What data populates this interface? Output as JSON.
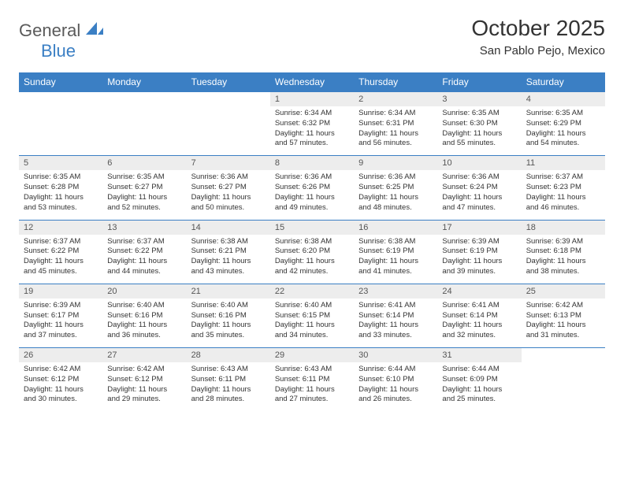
{
  "logo": {
    "text_general": "General",
    "text_blue": "Blue"
  },
  "header": {
    "title": "October 2025",
    "subtitle": "San Pablo Pejo, Mexico"
  },
  "colors": {
    "header_bg": "#3b7fc4",
    "header_text": "#ffffff",
    "daynum_bg": "#ededed",
    "border": "#3b7fc4",
    "page_bg": "#ffffff",
    "title_color": "#333333"
  },
  "calendar": {
    "day_headers": [
      "Sunday",
      "Monday",
      "Tuesday",
      "Wednesday",
      "Thursday",
      "Friday",
      "Saturday"
    ],
    "first_weekday_index": 3,
    "days": [
      {
        "n": 1,
        "sunrise": "6:34 AM",
        "sunset": "6:32 PM",
        "dl_h": 11,
        "dl_m": 57
      },
      {
        "n": 2,
        "sunrise": "6:34 AM",
        "sunset": "6:31 PM",
        "dl_h": 11,
        "dl_m": 56
      },
      {
        "n": 3,
        "sunrise": "6:35 AM",
        "sunset": "6:30 PM",
        "dl_h": 11,
        "dl_m": 55
      },
      {
        "n": 4,
        "sunrise": "6:35 AM",
        "sunset": "6:29 PM",
        "dl_h": 11,
        "dl_m": 54
      },
      {
        "n": 5,
        "sunrise": "6:35 AM",
        "sunset": "6:28 PM",
        "dl_h": 11,
        "dl_m": 53
      },
      {
        "n": 6,
        "sunrise": "6:35 AM",
        "sunset": "6:27 PM",
        "dl_h": 11,
        "dl_m": 52
      },
      {
        "n": 7,
        "sunrise": "6:36 AM",
        "sunset": "6:27 PM",
        "dl_h": 11,
        "dl_m": 50
      },
      {
        "n": 8,
        "sunrise": "6:36 AM",
        "sunset": "6:26 PM",
        "dl_h": 11,
        "dl_m": 49
      },
      {
        "n": 9,
        "sunrise": "6:36 AM",
        "sunset": "6:25 PM",
        "dl_h": 11,
        "dl_m": 48
      },
      {
        "n": 10,
        "sunrise": "6:36 AM",
        "sunset": "6:24 PM",
        "dl_h": 11,
        "dl_m": 47
      },
      {
        "n": 11,
        "sunrise": "6:37 AM",
        "sunset": "6:23 PM",
        "dl_h": 11,
        "dl_m": 46
      },
      {
        "n": 12,
        "sunrise": "6:37 AM",
        "sunset": "6:22 PM",
        "dl_h": 11,
        "dl_m": 45
      },
      {
        "n": 13,
        "sunrise": "6:37 AM",
        "sunset": "6:22 PM",
        "dl_h": 11,
        "dl_m": 44
      },
      {
        "n": 14,
        "sunrise": "6:38 AM",
        "sunset": "6:21 PM",
        "dl_h": 11,
        "dl_m": 43
      },
      {
        "n": 15,
        "sunrise": "6:38 AM",
        "sunset": "6:20 PM",
        "dl_h": 11,
        "dl_m": 42
      },
      {
        "n": 16,
        "sunrise": "6:38 AM",
        "sunset": "6:19 PM",
        "dl_h": 11,
        "dl_m": 41
      },
      {
        "n": 17,
        "sunrise": "6:39 AM",
        "sunset": "6:19 PM",
        "dl_h": 11,
        "dl_m": 39
      },
      {
        "n": 18,
        "sunrise": "6:39 AM",
        "sunset": "6:18 PM",
        "dl_h": 11,
        "dl_m": 38
      },
      {
        "n": 19,
        "sunrise": "6:39 AM",
        "sunset": "6:17 PM",
        "dl_h": 11,
        "dl_m": 37
      },
      {
        "n": 20,
        "sunrise": "6:40 AM",
        "sunset": "6:16 PM",
        "dl_h": 11,
        "dl_m": 36
      },
      {
        "n": 21,
        "sunrise": "6:40 AM",
        "sunset": "6:16 PM",
        "dl_h": 11,
        "dl_m": 35
      },
      {
        "n": 22,
        "sunrise": "6:40 AM",
        "sunset": "6:15 PM",
        "dl_h": 11,
        "dl_m": 34
      },
      {
        "n": 23,
        "sunrise": "6:41 AM",
        "sunset": "6:14 PM",
        "dl_h": 11,
        "dl_m": 33
      },
      {
        "n": 24,
        "sunrise": "6:41 AM",
        "sunset": "6:14 PM",
        "dl_h": 11,
        "dl_m": 32
      },
      {
        "n": 25,
        "sunrise": "6:42 AM",
        "sunset": "6:13 PM",
        "dl_h": 11,
        "dl_m": 31
      },
      {
        "n": 26,
        "sunrise": "6:42 AM",
        "sunset": "6:12 PM",
        "dl_h": 11,
        "dl_m": 30
      },
      {
        "n": 27,
        "sunrise": "6:42 AM",
        "sunset": "6:12 PM",
        "dl_h": 11,
        "dl_m": 29
      },
      {
        "n": 28,
        "sunrise": "6:43 AM",
        "sunset": "6:11 PM",
        "dl_h": 11,
        "dl_m": 28
      },
      {
        "n": 29,
        "sunrise": "6:43 AM",
        "sunset": "6:11 PM",
        "dl_h": 11,
        "dl_m": 27
      },
      {
        "n": 30,
        "sunrise": "6:44 AM",
        "sunset": "6:10 PM",
        "dl_h": 11,
        "dl_m": 26
      },
      {
        "n": 31,
        "sunrise": "6:44 AM",
        "sunset": "6:09 PM",
        "dl_h": 11,
        "dl_m": 25
      }
    ]
  }
}
